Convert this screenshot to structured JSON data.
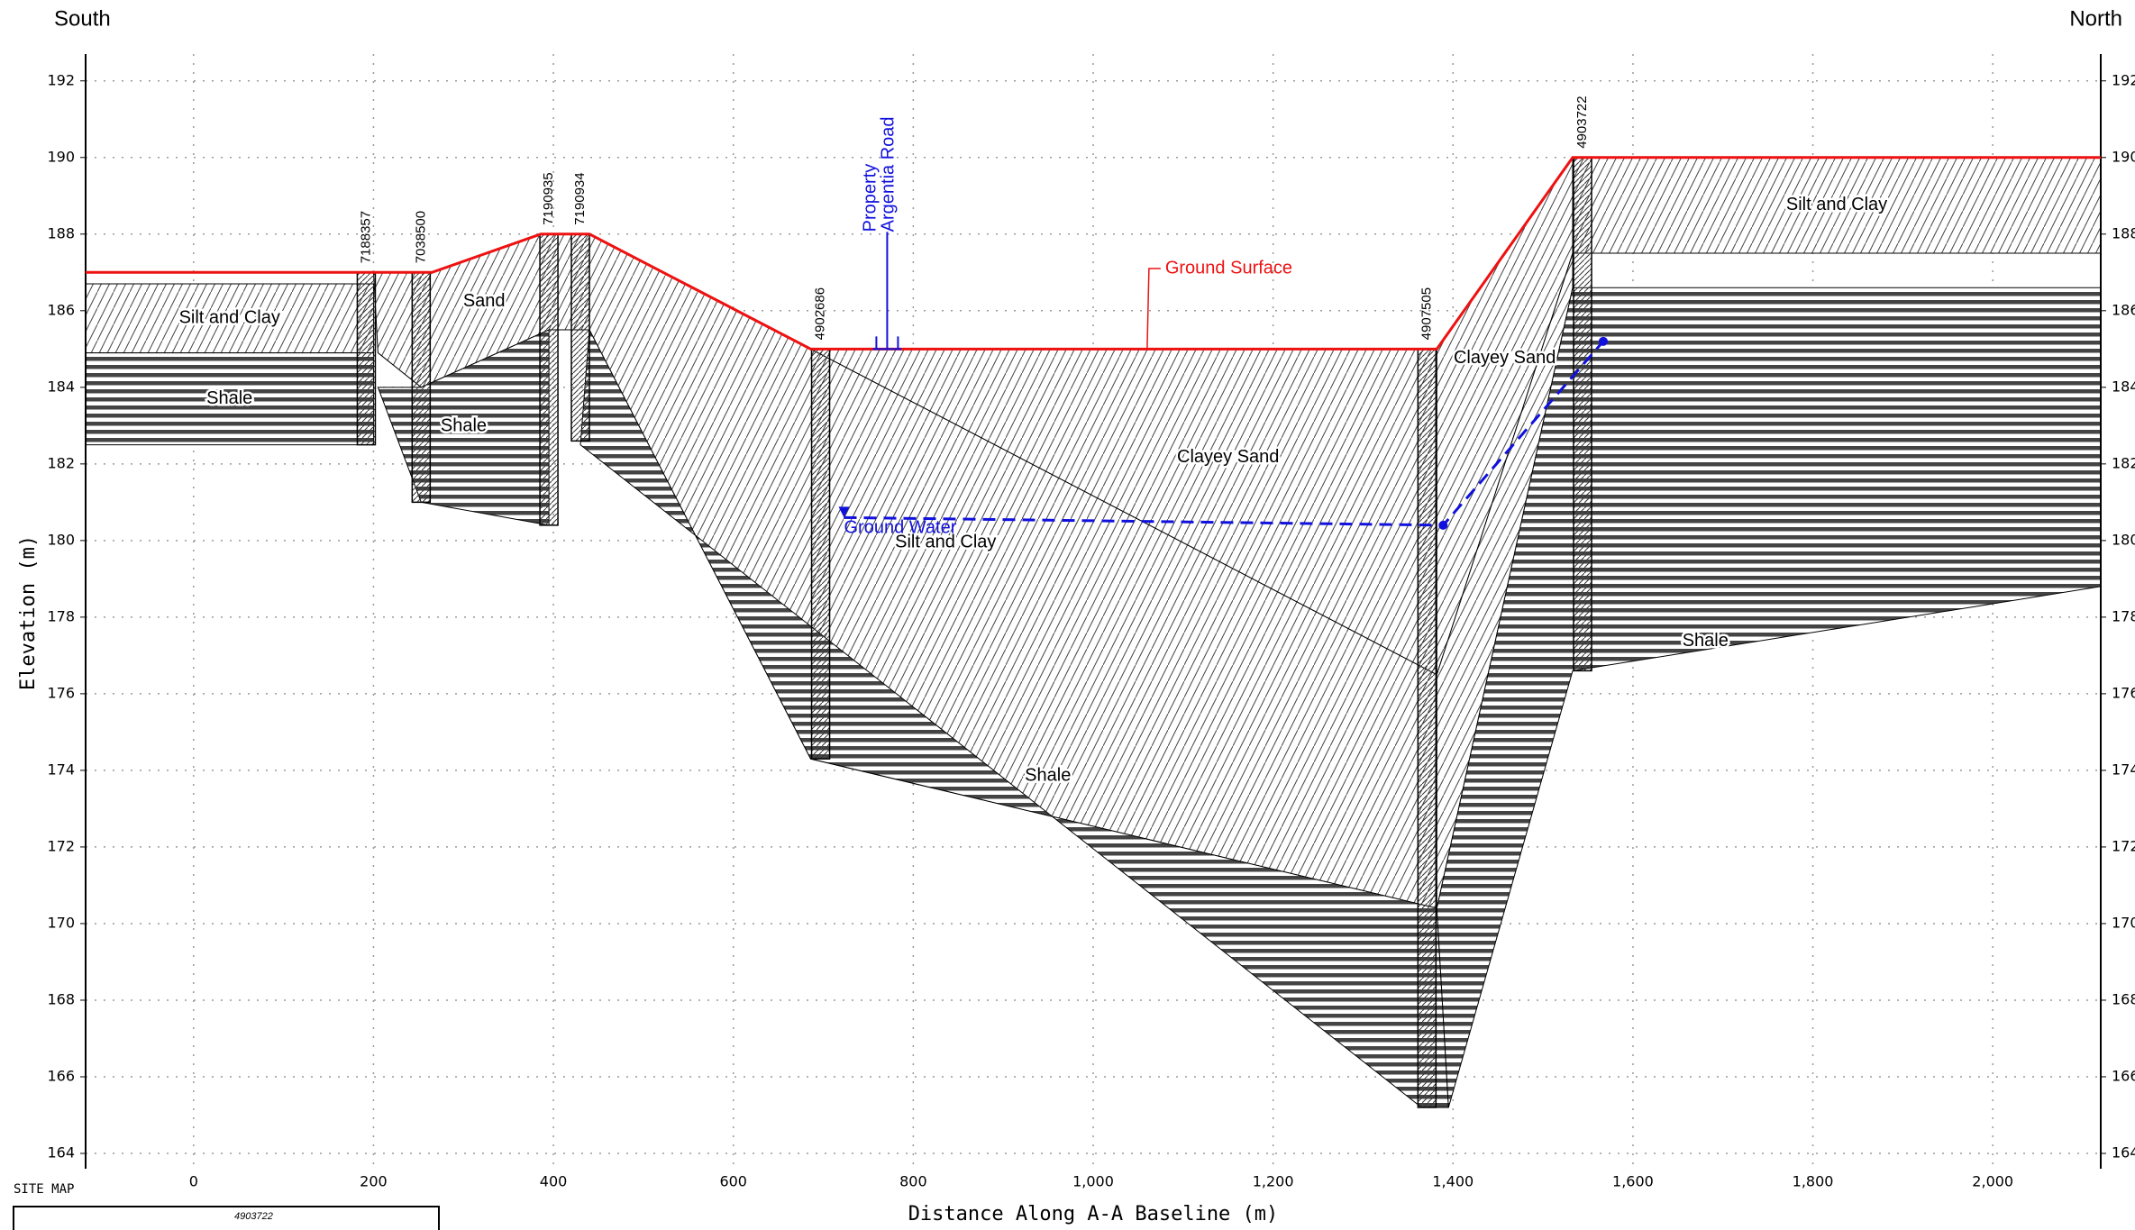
{
  "chart_data": {
    "type": "cross-section",
    "left_label": "South",
    "right_label": "North",
    "x_label": "Distance Along A-A Baseline (m)",
    "y_label": "Elevation (m)",
    "xlim": [
      -120,
      2120
    ],
    "ylim": [
      163.6,
      192.7
    ],
    "xticks": [
      0,
      200,
      400,
      600,
      800,
      {
        "value": 1000,
        "label": "1,000"
      },
      {
        "value": 1200,
        "label": "1,200"
      },
      {
        "value": 1400,
        "label": "1,400"
      },
      {
        "value": 1600,
        "label": "1,600"
      },
      {
        "value": 1800,
        "label": "1,800"
      },
      {
        "value": 2000,
        "label": "2,000"
      }
    ],
    "yticks": [
      164,
      166,
      168,
      170,
      172,
      174,
      176,
      178,
      180,
      182,
      184,
      186,
      188,
      190,
      192
    ],
    "grid": true,
    "layers": [
      {
        "name": "Silt and Clay",
        "pattern": "hatch",
        "x": [
          -120,
          200,
          200,
          -120
        ],
        "y": [
          186.7,
          186.7,
          184.9,
          184.9
        ]
      },
      {
        "name": "Shale",
        "pattern": "shale",
        "x": [
          -120,
          200,
          200,
          -120
        ],
        "y": [
          184.9,
          184.9,
          182.5,
          182.5
        ]
      },
      {
        "name": "Sand",
        "pattern": "hatch",
        "x": [
          200,
          265,
          386,
          440,
          440,
          395,
          253,
          205
        ],
        "y": [
          187,
          187,
          188,
          188,
          185.5,
          185.5,
          184,
          184.9
        ]
      },
      {
        "name": "Shale",
        "pattern": "shale",
        "x": [
          205,
          253,
          395,
          395,
          253
        ],
        "y": [
          184,
          184,
          185.5,
          180.4,
          181
        ]
      },
      {
        "name": "Silt and Clay",
        "pattern": "hatch",
        "x": [
          440,
          686,
          1382,
          1382,
          686,
          440
        ],
        "y": [
          188,
          185,
          176.5,
          170.4,
          174.3,
          185.5
        ]
      },
      {
        "name": "Clayey Sand",
        "pattern": "hatch",
        "x": [
          686,
          1382,
          1382
        ],
        "y": [
          185,
          185,
          176.5
        ]
      },
      {
        "name": "Shale",
        "pattern": "shale",
        "x": [
          430,
          440,
          686,
          1382,
          1395,
          1365
        ],
        "y": [
          182.5,
          185.5,
          174.3,
          170.4,
          165.2,
          165.2
        ]
      },
      {
        "name": "Clayey Sand",
        "pattern": "hatch",
        "x": [
          1382,
          1533,
          1533,
          1382
        ],
        "y": [
          185,
          190,
          187.5,
          176.5
        ]
      },
      {
        "name": null,
        "pattern": "hatch",
        "x": [
          1382,
          1533,
          1533,
          1382
        ],
        "y": [
          176.5,
          187.5,
          186.6,
          170.4
        ]
      },
      {
        "name": "Shale",
        "pattern": "shale",
        "x": [
          1382,
          1533,
          2120,
          2120,
          1533,
          1395
        ],
        "y": [
          170.4,
          186.6,
          186.6,
          178.8,
          176.6,
          165.2
        ]
      },
      {
        "name": "Silt and Clay",
        "pattern": "hatch",
        "x": [
          1533,
          2120,
          2120,
          1533
        ],
        "y": [
          190,
          190,
          187.5,
          187.5
        ]
      }
    ],
    "boreholes": [
      {
        "id": "7188357",
        "x": 192,
        "top": 187,
        "bottom": 182.5
      },
      {
        "id": "7038500",
        "x": 253,
        "top": 187,
        "bottom": 181
      },
      {
        "id": "7190935",
        "x": 395,
        "top": 188,
        "bottom": 180.4
      },
      {
        "id": "7190934",
        "x": 430,
        "top": 188,
        "bottom": 182.6
      },
      {
        "id": "4902686",
        "x": 697,
        "top": 185,
        "bottom": 174.3
      },
      {
        "id": "4907505",
        "x": 1371,
        "top": 185,
        "bottom": 165.2
      },
      {
        "id": "4903722",
        "x": 1544,
        "top": 190,
        "bottom": 176.6
      }
    ],
    "ground_surface": {
      "name": "Ground Surface",
      "color": "#ee1111",
      "x": [
        -120,
        265,
        386,
        440,
        686,
        1382,
        1533,
        2120
      ],
      "y": [
        187,
        187,
        188,
        188,
        185,
        185,
        190,
        190
      ]
    },
    "ground_water": {
      "name": "Ground Water",
      "color": "#1111dd",
      "x": [
        723,
        1389,
        1567
      ],
      "y": [
        180.6,
        180.4,
        185.2
      ]
    },
    "road": {
      "labels": [
        "Property",
        "Argentia Road"
      ],
      "x": 771
    },
    "site_map": {
      "title": "SITE MAP",
      "label": "4903722"
    }
  }
}
